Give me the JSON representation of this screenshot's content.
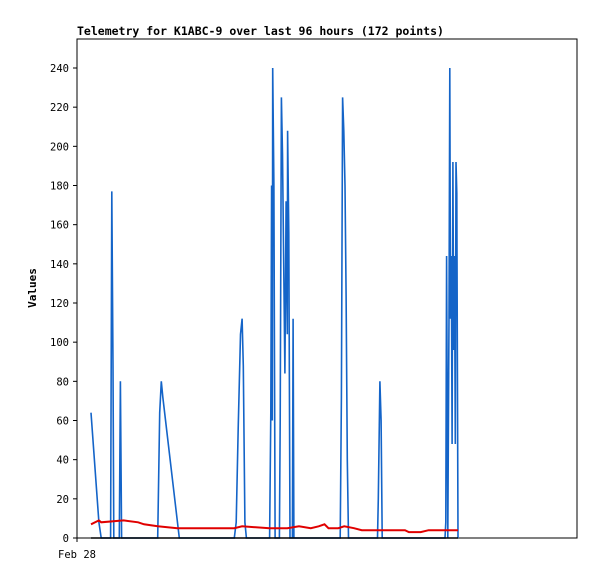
{
  "chart_data": {
    "type": "line",
    "title": "Telemetry for K1ABC-9 over last 96 hours (172 points)",
    "xlabel": "",
    "ylabel": "Values",
    "x_tick_labels": [
      "Feb 28"
    ],
    "y_ticks": [
      0,
      20,
      40,
      60,
      80,
      100,
      120,
      140,
      160,
      180,
      200,
      220,
      240
    ],
    "ylim": [
      0,
      255
    ],
    "xlim": [
      0,
      96
    ],
    "grid": false,
    "legend": "none",
    "colors": {
      "blue": "#1464c8",
      "red": "#e00000",
      "black": "#000000"
    },
    "series": [
      {
        "color": "#1464c8",
        "points": [
          [
            0.0,
            64
          ],
          [
            2.0,
            8
          ],
          [
            2.6,
            0
          ],
          [
            5.0,
            0
          ],
          [
            5.3,
            177
          ],
          [
            5.6,
            88
          ],
          [
            5.8,
            0
          ],
          [
            7.2,
            0
          ],
          [
            7.5,
            80
          ],
          [
            7.8,
            0
          ],
          [
            17.0,
            0
          ],
          [
            17.5,
            64
          ],
          [
            17.9,
            80
          ],
          [
            18.3,
            72
          ],
          [
            22.5,
            0
          ],
          [
            36.5,
            0
          ],
          [
            37.0,
            8
          ],
          [
            37.5,
            56
          ],
          [
            38.1,
            104
          ],
          [
            38.5,
            112
          ],
          [
            38.8,
            88
          ],
          [
            39.2,
            8
          ],
          [
            39.6,
            0
          ],
          [
            45.5,
            0
          ],
          [
            45.8,
            64
          ],
          [
            46.0,
            180
          ],
          [
            46.2,
            60
          ],
          [
            46.3,
            240
          ],
          [
            46.6,
            180
          ],
          [
            46.9,
            0
          ],
          [
            48.0,
            0
          ],
          [
            48.2,
            60
          ],
          [
            48.5,
            225
          ],
          [
            48.8,
            196
          ],
          [
            49.1,
            140
          ],
          [
            49.4,
            84
          ],
          [
            49.7,
            172
          ],
          [
            50.0,
            104
          ],
          [
            50.1,
            208
          ],
          [
            50.4,
            156
          ],
          [
            50.7,
            0
          ],
          [
            51.3,
            0
          ],
          [
            51.5,
            112
          ],
          [
            51.7,
            0
          ],
          [
            63.5,
            0
          ],
          [
            63.8,
            72
          ],
          [
            64.1,
            225
          ],
          [
            64.4,
            208
          ],
          [
            64.7,
            180
          ],
          [
            65.0,
            124
          ],
          [
            65.3,
            40
          ],
          [
            65.6,
            0
          ],
          [
            73.0,
            0
          ],
          [
            73.2,
            20
          ],
          [
            73.6,
            80
          ],
          [
            73.9,
            60
          ],
          [
            74.2,
            0
          ],
          [
            90.2,
            0
          ],
          [
            90.4,
            8
          ],
          [
            90.6,
            144
          ],
          [
            90.9,
            0
          ],
          [
            91.2,
            112
          ],
          [
            91.4,
            240
          ],
          [
            91.6,
            112
          ],
          [
            91.8,
            144
          ],
          [
            92.0,
            48
          ],
          [
            92.2,
            192
          ],
          [
            92.4,
            96
          ],
          [
            92.6,
            144
          ],
          [
            92.8,
            48
          ],
          [
            93.0,
            192
          ],
          [
            93.2,
            176
          ],
          [
            93.5,
            0
          ]
        ]
      },
      {
        "color": "#e00000",
        "points": [
          [
            0.0,
            7
          ],
          [
            2.0,
            9
          ],
          [
            2.6,
            8
          ],
          [
            8.3,
            9
          ],
          [
            12.0,
            8
          ],
          [
            13.5,
            7
          ],
          [
            17.0,
            6
          ],
          [
            22.0,
            5
          ],
          [
            36.5,
            5
          ],
          [
            38.5,
            6
          ],
          [
            45.5,
            5
          ],
          [
            50.0,
            5
          ],
          [
            53.0,
            6
          ],
          [
            56.0,
            5
          ],
          [
            58.0,
            6
          ],
          [
            59.5,
            7
          ],
          [
            60.5,
            5
          ],
          [
            63.0,
            5
          ],
          [
            64.5,
            6
          ],
          [
            67.0,
            5
          ],
          [
            69.0,
            4
          ],
          [
            80.0,
            4
          ],
          [
            81.0,
            3
          ],
          [
            84.0,
            3
          ],
          [
            86.0,
            4
          ],
          [
            93.5,
            4
          ]
        ]
      },
      {
        "color": "#000000",
        "points": [
          [
            0.0,
            0
          ],
          [
            93.5,
            0
          ]
        ]
      }
    ]
  }
}
